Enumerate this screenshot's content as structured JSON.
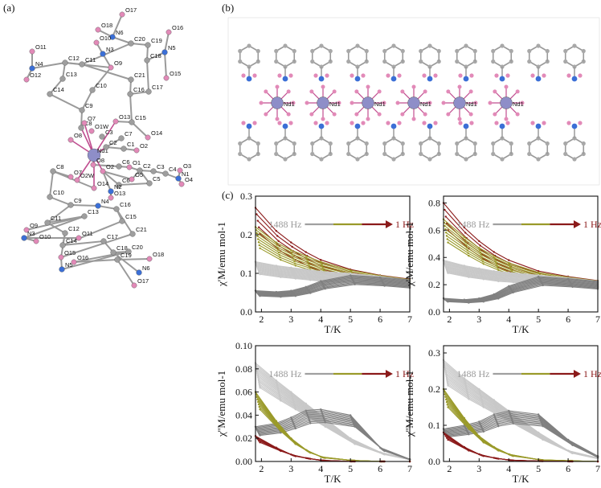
{
  "panels": {
    "a_label": "(a)",
    "b_label": "(b)",
    "c_label": "(c)"
  },
  "structure_a": {
    "atom_labels": [
      "O17",
      "O18",
      "N6",
      "O10",
      "C20",
      "C19",
      "O16",
      "O11",
      "N3",
      "C18",
      "N5",
      "N4",
      "C12",
      "C11",
      "O9",
      "C21",
      "O15",
      "O12",
      "C13",
      "C10",
      "C17",
      "C14",
      "C16",
      "C9",
      "C8",
      "O13",
      "C15",
      "O1W",
      "O14",
      "O7",
      "C3",
      "C7",
      "O8",
      "Nd1",
      "C2",
      "C1",
      "O2",
      "O8",
      "C6",
      "O1",
      "C2",
      "C3",
      "C4",
      "N1",
      "O3",
      "O4",
      "O7",
      "O2W",
      "O5",
      "C8",
      "O2",
      "C6",
      "C5",
      "O14",
      "N2",
      "O13",
      "C10",
      "C9",
      "N4",
      "C16",
      "C15",
      "C11",
      "C13",
      "O9",
      "C12",
      "C14",
      "C21",
      "N3",
      "O10",
      "O11",
      "C17",
      "O15",
      "C18",
      "C20",
      "N5",
      "O16",
      "C19",
      "N6",
      "O18",
      "O17"
    ]
  },
  "structure_b": {
    "atom_labels": [
      "Nd1",
      "Nd1",
      "Nd1",
      "Nd1",
      "Nd1",
      "Nd1"
    ]
  },
  "chart_data": [
    {
      "type": "line",
      "panel": "top-left",
      "xlabel": "T/K",
      "ylabel": "χ'M/emu mol-1",
      "xlim": [
        1.8,
        7
      ],
      "ylim": [
        0,
        0.3
      ],
      "xticks": [
        "2",
        "3",
        "4",
        "5",
        "6",
        "7"
      ],
      "yticks": [
        "0.0",
        "0.1",
        "0.2",
        "0.3"
      ],
      "annotation": {
        "from": "1488 Hz",
        "to": "1 Hz"
      },
      "series_groups": [
        {
          "color": "#8b1a1a",
          "count": 5,
          "values_at_x": {
            "x": [
              1.8,
              2.5,
              3,
              3.5,
              4,
              5,
              6,
              7
            ],
            "y": [
              0.27,
              0.21,
              0.18,
              0.155,
              0.135,
              0.11,
              0.095,
              0.085
            ]
          }
        },
        {
          "color": "#9a9a2a",
          "count": 8,
          "values_at_x": {
            "x": [
              1.8,
              2.5,
              3,
              3.5,
              4,
              5,
              6,
              7
            ],
            "y": [
              0.22,
              0.18,
              0.16,
              0.145,
              0.13,
              0.108,
              0.094,
              0.084
            ]
          }
        },
        {
          "color": "#c8c8c8",
          "count": 15,
          "values_at_x": {
            "x": [
              1.8,
              2.5,
              3,
              3.5,
              4,
              5,
              6,
              7
            ],
            "y": [
              0.13,
              0.12,
              0.115,
              0.11,
              0.105,
              0.1,
              0.092,
              0.083
            ]
          }
        },
        {
          "color": "#808080",
          "count": 10,
          "values_at_x": {
            "x": [
              1.8,
              2.5,
              3,
              3.5,
              4,
              5,
              6,
              7
            ],
            "y": [
              0.055,
              0.052,
              0.055,
              0.065,
              0.08,
              0.095,
              0.09,
              0.083
            ]
          }
        }
      ]
    },
    {
      "type": "line",
      "panel": "top-right",
      "xlabel": "T/K",
      "ylabel": "χ'M/emu mol-1",
      "xlim": [
        1.8,
        7
      ],
      "ylim": [
        0,
        0.85
      ],
      "xticks": [
        "2",
        "3",
        "4",
        "5",
        "6",
        "7"
      ],
      "yticks": [
        "0.0",
        "0.2",
        "0.4",
        "0.6",
        "0.8"
      ],
      "annotation": {
        "from": "1488 Hz",
        "to": "1 Hz"
      },
      "series_groups": [
        {
          "color": "#8b1a1a",
          "count": 5,
          "values_at_x": {
            "x": [
              1.8,
              2.5,
              3,
              3.5,
              4,
              5,
              6,
              7
            ],
            "y": [
              0.8,
              0.62,
              0.52,
              0.44,
              0.38,
              0.3,
              0.26,
              0.23
            ]
          }
        },
        {
          "color": "#9a9a2a",
          "count": 8,
          "values_at_x": {
            "x": [
              1.8,
              2.5,
              3,
              3.5,
              4,
              5,
              6,
              7
            ],
            "y": [
              0.68,
              0.55,
              0.47,
              0.41,
              0.36,
              0.29,
              0.255,
              0.228
            ]
          }
        },
        {
          "color": "#c8c8c8",
          "count": 15,
          "values_at_x": {
            "x": [
              1.8,
              2.5,
              3,
              3.5,
              4,
              5,
              6,
              7
            ],
            "y": [
              0.38,
              0.34,
              0.32,
              0.3,
              0.29,
              0.27,
              0.25,
              0.226
            ]
          }
        },
        {
          "color": "#808080",
          "count": 10,
          "values_at_x": {
            "x": [
              1.8,
              2.5,
              3,
              3.5,
              4,
              5,
              6,
              7
            ],
            "y": [
              0.1,
              0.09,
              0.1,
              0.13,
              0.19,
              0.26,
              0.245,
              0.225
            ]
          }
        }
      ]
    },
    {
      "type": "line",
      "panel": "bottom-left",
      "xlabel": "T/K",
      "ylabel": "χ''M/emu mol-1",
      "xlim": [
        1.8,
        7
      ],
      "ylim": [
        0,
        0.1
      ],
      "xticks": [
        "2",
        "3",
        "4",
        "5",
        "6",
        "7"
      ],
      "yticks": [
        "0.00",
        "0.02",
        "0.04",
        "0.06",
        "0.08",
        "0.10"
      ],
      "annotation": {
        "from": "1488 Hz",
        "to": "1 Hz"
      },
      "series_groups": [
        {
          "color": "#c8c8c8",
          "count": 15,
          "values_at_x": {
            "x": [
              1.8,
              2.5,
              3,
              3.5,
              4,
              5,
              6,
              7
            ],
            "y": [
              0.085,
              0.07,
              0.06,
              0.05,
              0.04,
              0.02,
              0.008,
              0.002
            ]
          }
        },
        {
          "color": "#808080",
          "count": 10,
          "values_at_x": {
            "x": [
              1.8,
              2.5,
              3,
              3.5,
              4,
              5,
              6,
              7
            ],
            "y": [
              0.03,
              0.033,
              0.038,
              0.044,
              0.045,
              0.04,
              0.012,
              0.002
            ]
          }
        },
        {
          "color": "#9a9a2a",
          "count": 8,
          "values_at_x": {
            "x": [
              1.8,
              2.5,
              3,
              3.5,
              4,
              5,
              6,
              7
            ],
            "y": [
              0.06,
              0.035,
              0.02,
              0.01,
              0.004,
              0.001,
              0.0,
              0.0
            ]
          }
        },
        {
          "color": "#8b1a1a",
          "count": 5,
          "values_at_x": {
            "x": [
              1.8,
              2.5,
              3,
              3.5,
              4,
              5,
              6,
              7
            ],
            "y": [
              0.022,
              0.012,
              0.006,
              0.003,
              0.001,
              0.0,
              0.0,
              0.0
            ]
          }
        }
      ]
    },
    {
      "type": "line",
      "panel": "bottom-right",
      "xlabel": "T/K",
      "ylabel": "χ''M/emu mol-1",
      "xlim": [
        1.8,
        7
      ],
      "ylim": [
        0,
        0.32
      ],
      "xticks": [
        "2",
        "3",
        "4",
        "5",
        "6",
        "7"
      ],
      "yticks": [
        "0.0",
        "0.1",
        "0.2",
        "0.3"
      ],
      "annotation": {
        "from": "1488 Hz",
        "to": "1 Hz"
      },
      "series_groups": [
        {
          "color": "#c8c8c8",
          "count": 15,
          "values_at_x": {
            "x": [
              1.8,
              2.5,
              3,
              3.5,
              4,
              5,
              6,
              7
            ],
            "y": [
              0.28,
              0.23,
              0.2,
              0.17,
              0.14,
              0.08,
              0.03,
              0.01
            ]
          }
        },
        {
          "color": "#808080",
          "count": 10,
          "values_at_x": {
            "x": [
              1.8,
              2.5,
              3,
              3.5,
              4,
              5,
              6,
              7
            ],
            "y": [
              0.09,
              0.1,
              0.11,
              0.13,
              0.14,
              0.13,
              0.06,
              0.015
            ]
          }
        },
        {
          "color": "#9a9a2a",
          "count": 8,
          "values_at_x": {
            "x": [
              1.8,
              2.5,
              3,
              3.5,
              4,
              5,
              6,
              7
            ],
            "y": [
              0.2,
              0.12,
              0.07,
              0.04,
              0.02,
              0.005,
              0.002,
              0.0
            ]
          }
        },
        {
          "color": "#8b1a1a",
          "count": 5,
          "values_at_x": {
            "x": [
              1.8,
              2.5,
              3,
              3.5,
              4,
              5,
              6,
              7
            ],
            "y": [
              0.08,
              0.04,
              0.02,
              0.01,
              0.004,
              0.001,
              0.0,
              0.0
            ]
          }
        }
      ]
    }
  ]
}
